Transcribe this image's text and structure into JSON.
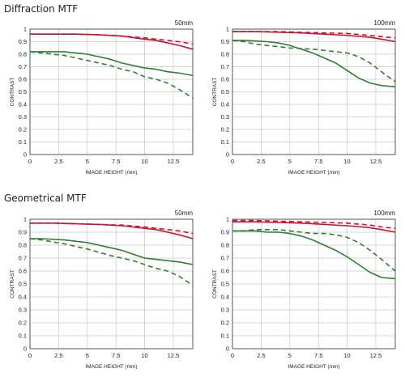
{
  "sections": [
    {
      "title": "Diffraction MTF"
    },
    {
      "title": "Geometrical MTF"
    }
  ],
  "colors": {
    "red": "#d0112b",
    "green": "#2e7d32"
  },
  "chart_data": [
    {
      "type": "line",
      "label": "50mm",
      "xlabel": "IMAGE HEIGHT (mm)",
      "ylabel": "CONTRAST",
      "xlim": [
        0,
        14.2
      ],
      "ylim": [
        0,
        1
      ],
      "xticks": [
        "0",
        "2.5",
        "5",
        "7.5",
        "10",
        "12.5"
      ],
      "yticks": [
        "0",
        "0.1",
        "0.2",
        "0.3",
        "0.4",
        "0.5",
        "0.6",
        "0.7",
        "0.8",
        "0.9",
        "1"
      ],
      "grid": true,
      "series": [
        {
          "color": "#d0112b",
          "style": "solid",
          "x": [
            0,
            2,
            4,
            6,
            8,
            10,
            11,
            12,
            13,
            14.2
          ],
          "y": [
            0.96,
            0.96,
            0.96,
            0.955,
            0.945,
            0.92,
            0.91,
            0.89,
            0.87,
            0.84
          ]
        },
        {
          "color": "#d0112b",
          "style": "dashed",
          "x": [
            0,
            2,
            4,
            6,
            8,
            10,
            11,
            12,
            13,
            14.2
          ],
          "y": [
            0.96,
            0.96,
            0.96,
            0.955,
            0.945,
            0.93,
            0.92,
            0.91,
            0.9,
            0.88
          ]
        },
        {
          "color": "#2e7d32",
          "style": "solid",
          "x": [
            0,
            1,
            3,
            5,
            6,
            7,
            8,
            9,
            10,
            11,
            12,
            13,
            14.2
          ],
          "y": [
            0.82,
            0.82,
            0.82,
            0.8,
            0.78,
            0.76,
            0.73,
            0.71,
            0.69,
            0.68,
            0.66,
            0.65,
            0.63
          ]
        },
        {
          "color": "#2e7d32",
          "style": "dashed",
          "x": [
            0,
            1,
            3,
            5,
            7,
            8,
            9,
            10,
            11,
            12,
            13,
            14.2
          ],
          "y": [
            0.82,
            0.81,
            0.79,
            0.75,
            0.71,
            0.68,
            0.66,
            0.62,
            0.6,
            0.57,
            0.52,
            0.45
          ]
        }
      ]
    },
    {
      "type": "line",
      "label": "100mm",
      "xlabel": "IMAGE HEIGHT (mm)",
      "ylabel": "CONTRAST",
      "xlim": [
        0,
        14.2
      ],
      "ylim": [
        0,
        1
      ],
      "xticks": [
        "0",
        "2.5",
        "5",
        "7.5",
        "10",
        "12.5"
      ],
      "yticks": [
        "0",
        "0.1",
        "0.2",
        "0.3",
        "0.4",
        "0.5",
        "0.6",
        "0.7",
        "0.8",
        "0.9",
        "1"
      ],
      "grid": true,
      "series": [
        {
          "color": "#d0112b",
          "style": "solid",
          "x": [
            0,
            2,
            4,
            6,
            8,
            10,
            12,
            13,
            14.2
          ],
          "y": [
            0.98,
            0.98,
            0.975,
            0.97,
            0.96,
            0.95,
            0.935,
            0.92,
            0.9
          ]
        },
        {
          "color": "#d0112b",
          "style": "dashed",
          "x": [
            0,
            2,
            4,
            6,
            8,
            10,
            12,
            13,
            14.2
          ],
          "y": [
            0.98,
            0.98,
            0.98,
            0.975,
            0.97,
            0.965,
            0.95,
            0.94,
            0.93
          ]
        },
        {
          "color": "#2e7d32",
          "style": "solid",
          "x": [
            0,
            1,
            2,
            3,
            4,
            5,
            6,
            7,
            8,
            9,
            10,
            11,
            12,
            13,
            14.2
          ],
          "y": [
            0.91,
            0.91,
            0.905,
            0.9,
            0.89,
            0.87,
            0.84,
            0.81,
            0.77,
            0.73,
            0.67,
            0.61,
            0.57,
            0.55,
            0.54
          ]
        },
        {
          "color": "#2e7d32",
          "style": "dashed",
          "x": [
            0,
            1,
            2,
            3,
            5,
            7,
            8,
            9,
            10,
            11,
            12,
            13,
            14.2
          ],
          "y": [
            0.91,
            0.9,
            0.88,
            0.87,
            0.85,
            0.84,
            0.83,
            0.82,
            0.81,
            0.78,
            0.73,
            0.66,
            0.58
          ]
        }
      ]
    },
    {
      "type": "line",
      "label": "50mm",
      "xlabel": "IMAGE HEIGHT (mm)",
      "ylabel": "CONTRAST",
      "xlim": [
        0,
        14.2
      ],
      "ylim": [
        0,
        1
      ],
      "xticks": [
        "0",
        "2.5",
        "5",
        "7.5",
        "10",
        "12.5"
      ],
      "yticks": [
        "0",
        "0.1",
        "0.2",
        "0.3",
        "0.4",
        "0.5",
        "0.6",
        "0.7",
        "0.8",
        "0.9",
        "1"
      ],
      "grid": true,
      "series": [
        {
          "color": "#d0112b",
          "style": "solid",
          "x": [
            0,
            2,
            4,
            6,
            8,
            10,
            11,
            12,
            13,
            14.2
          ],
          "y": [
            0.97,
            0.97,
            0.965,
            0.96,
            0.95,
            0.93,
            0.92,
            0.9,
            0.88,
            0.85
          ]
        },
        {
          "color": "#d0112b",
          "style": "dashed",
          "x": [
            0,
            2,
            4,
            6,
            8,
            10,
            11,
            12,
            13,
            14.2
          ],
          "y": [
            0.97,
            0.97,
            0.965,
            0.96,
            0.955,
            0.94,
            0.93,
            0.92,
            0.91,
            0.89
          ]
        },
        {
          "color": "#2e7d32",
          "style": "solid",
          "x": [
            0,
            1,
            3,
            5,
            6,
            7,
            8,
            9,
            10,
            11,
            12,
            13,
            14.2
          ],
          "y": [
            0.85,
            0.85,
            0.84,
            0.82,
            0.8,
            0.78,
            0.76,
            0.73,
            0.7,
            0.69,
            0.68,
            0.67,
            0.65
          ]
        },
        {
          "color": "#2e7d32",
          "style": "dashed",
          "x": [
            0,
            1,
            3,
            5,
            7,
            8,
            9,
            10,
            11,
            12,
            13,
            14.2
          ],
          "y": [
            0.85,
            0.84,
            0.81,
            0.77,
            0.72,
            0.7,
            0.68,
            0.65,
            0.62,
            0.6,
            0.56,
            0.49
          ]
        }
      ]
    },
    {
      "type": "line",
      "label": "100mm",
      "xlabel": "IMAGE HEIGHT (mm)",
      "ylabel": "CONTRAST",
      "xlim": [
        0,
        14.2
      ],
      "ylim": [
        0,
        1
      ],
      "xticks": [
        "0",
        "2.5",
        "5",
        "7.5",
        "10",
        "12.5"
      ],
      "yticks": [
        "0",
        "0.1",
        "0.2",
        "0.3",
        "0.4",
        "0.5",
        "0.6",
        "0.7",
        "0.8",
        "0.9",
        "1"
      ],
      "grid": true,
      "series": [
        {
          "color": "#d0112b",
          "style": "solid",
          "x": [
            0,
            2,
            4,
            6,
            8,
            10,
            12,
            13,
            14.2
          ],
          "y": [
            0.98,
            0.98,
            0.975,
            0.97,
            0.96,
            0.95,
            0.935,
            0.92,
            0.9
          ]
        },
        {
          "color": "#d0112b",
          "style": "dashed",
          "x": [
            0,
            2,
            4,
            6,
            8,
            10,
            12,
            13,
            14.2
          ],
          "y": [
            0.99,
            0.99,
            0.985,
            0.98,
            0.975,
            0.97,
            0.955,
            0.94,
            0.93
          ]
        },
        {
          "color": "#2e7d32",
          "style": "solid",
          "x": [
            0,
            1,
            2,
            3,
            4,
            5,
            6,
            7,
            8,
            9,
            10,
            11,
            12,
            13,
            14.2
          ],
          "y": [
            0.91,
            0.91,
            0.91,
            0.9,
            0.9,
            0.89,
            0.87,
            0.84,
            0.8,
            0.76,
            0.71,
            0.65,
            0.59,
            0.55,
            0.54
          ]
        },
        {
          "color": "#2e7d32",
          "style": "dashed",
          "x": [
            0,
            1,
            2,
            3,
            4,
            5,
            6,
            7,
            8,
            9,
            10,
            11,
            12,
            13,
            14.2
          ],
          "y": [
            0.91,
            0.91,
            0.92,
            0.92,
            0.92,
            0.91,
            0.9,
            0.89,
            0.89,
            0.88,
            0.86,
            0.82,
            0.76,
            0.69,
            0.6
          ]
        }
      ]
    }
  ]
}
